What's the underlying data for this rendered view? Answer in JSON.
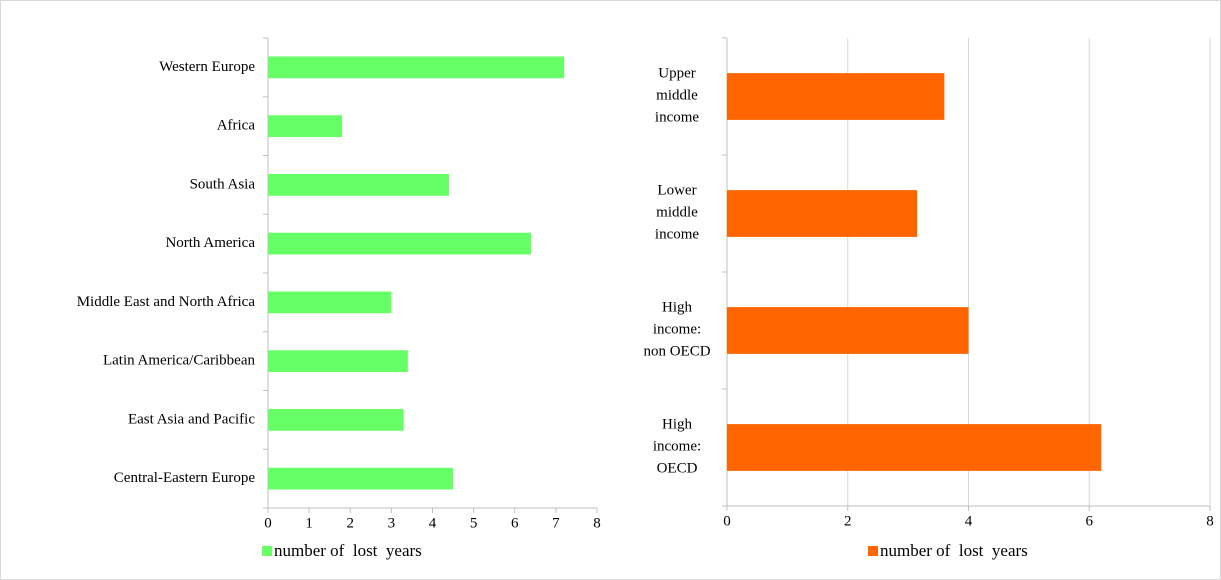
{
  "chart_data": [
    {
      "type": "bar",
      "orientation": "horizontal",
      "categories": [
        "Western Europe",
        "Africa",
        "South Asia",
        "North America",
        "Middle East and North Africa",
        "Latin America/Caribbean",
        "East Asia and Pacific",
        "Central-Eastern Europe"
      ],
      "series": [
        {
          "name": "number of  lost  years",
          "color": "#66ff66",
          "values": [
            7.2,
            1.8,
            4.4,
            6.4,
            3.0,
            3.4,
            3.3,
            4.5
          ]
        }
      ],
      "xlim": [
        0,
        8
      ],
      "xticks": [
        0,
        1,
        2,
        3,
        4,
        5,
        6,
        7,
        8
      ],
      "grid": false
    },
    {
      "type": "bar",
      "orientation": "horizontal",
      "categories": [
        "Upper\nmiddle\nincome",
        "Lower\nmiddle\nincome",
        "High\nincome:\nnon OECD",
        "High\nincome:\nOECD"
      ],
      "series": [
        {
          "name": "number of  lost  years",
          "color": "#ff6600",
          "values": [
            3.6,
            3.15,
            4.0,
            6.2
          ]
        }
      ],
      "xlim": [
        0,
        8
      ],
      "xticks": [
        0,
        2,
        4,
        6,
        8
      ],
      "grid": true
    }
  ]
}
